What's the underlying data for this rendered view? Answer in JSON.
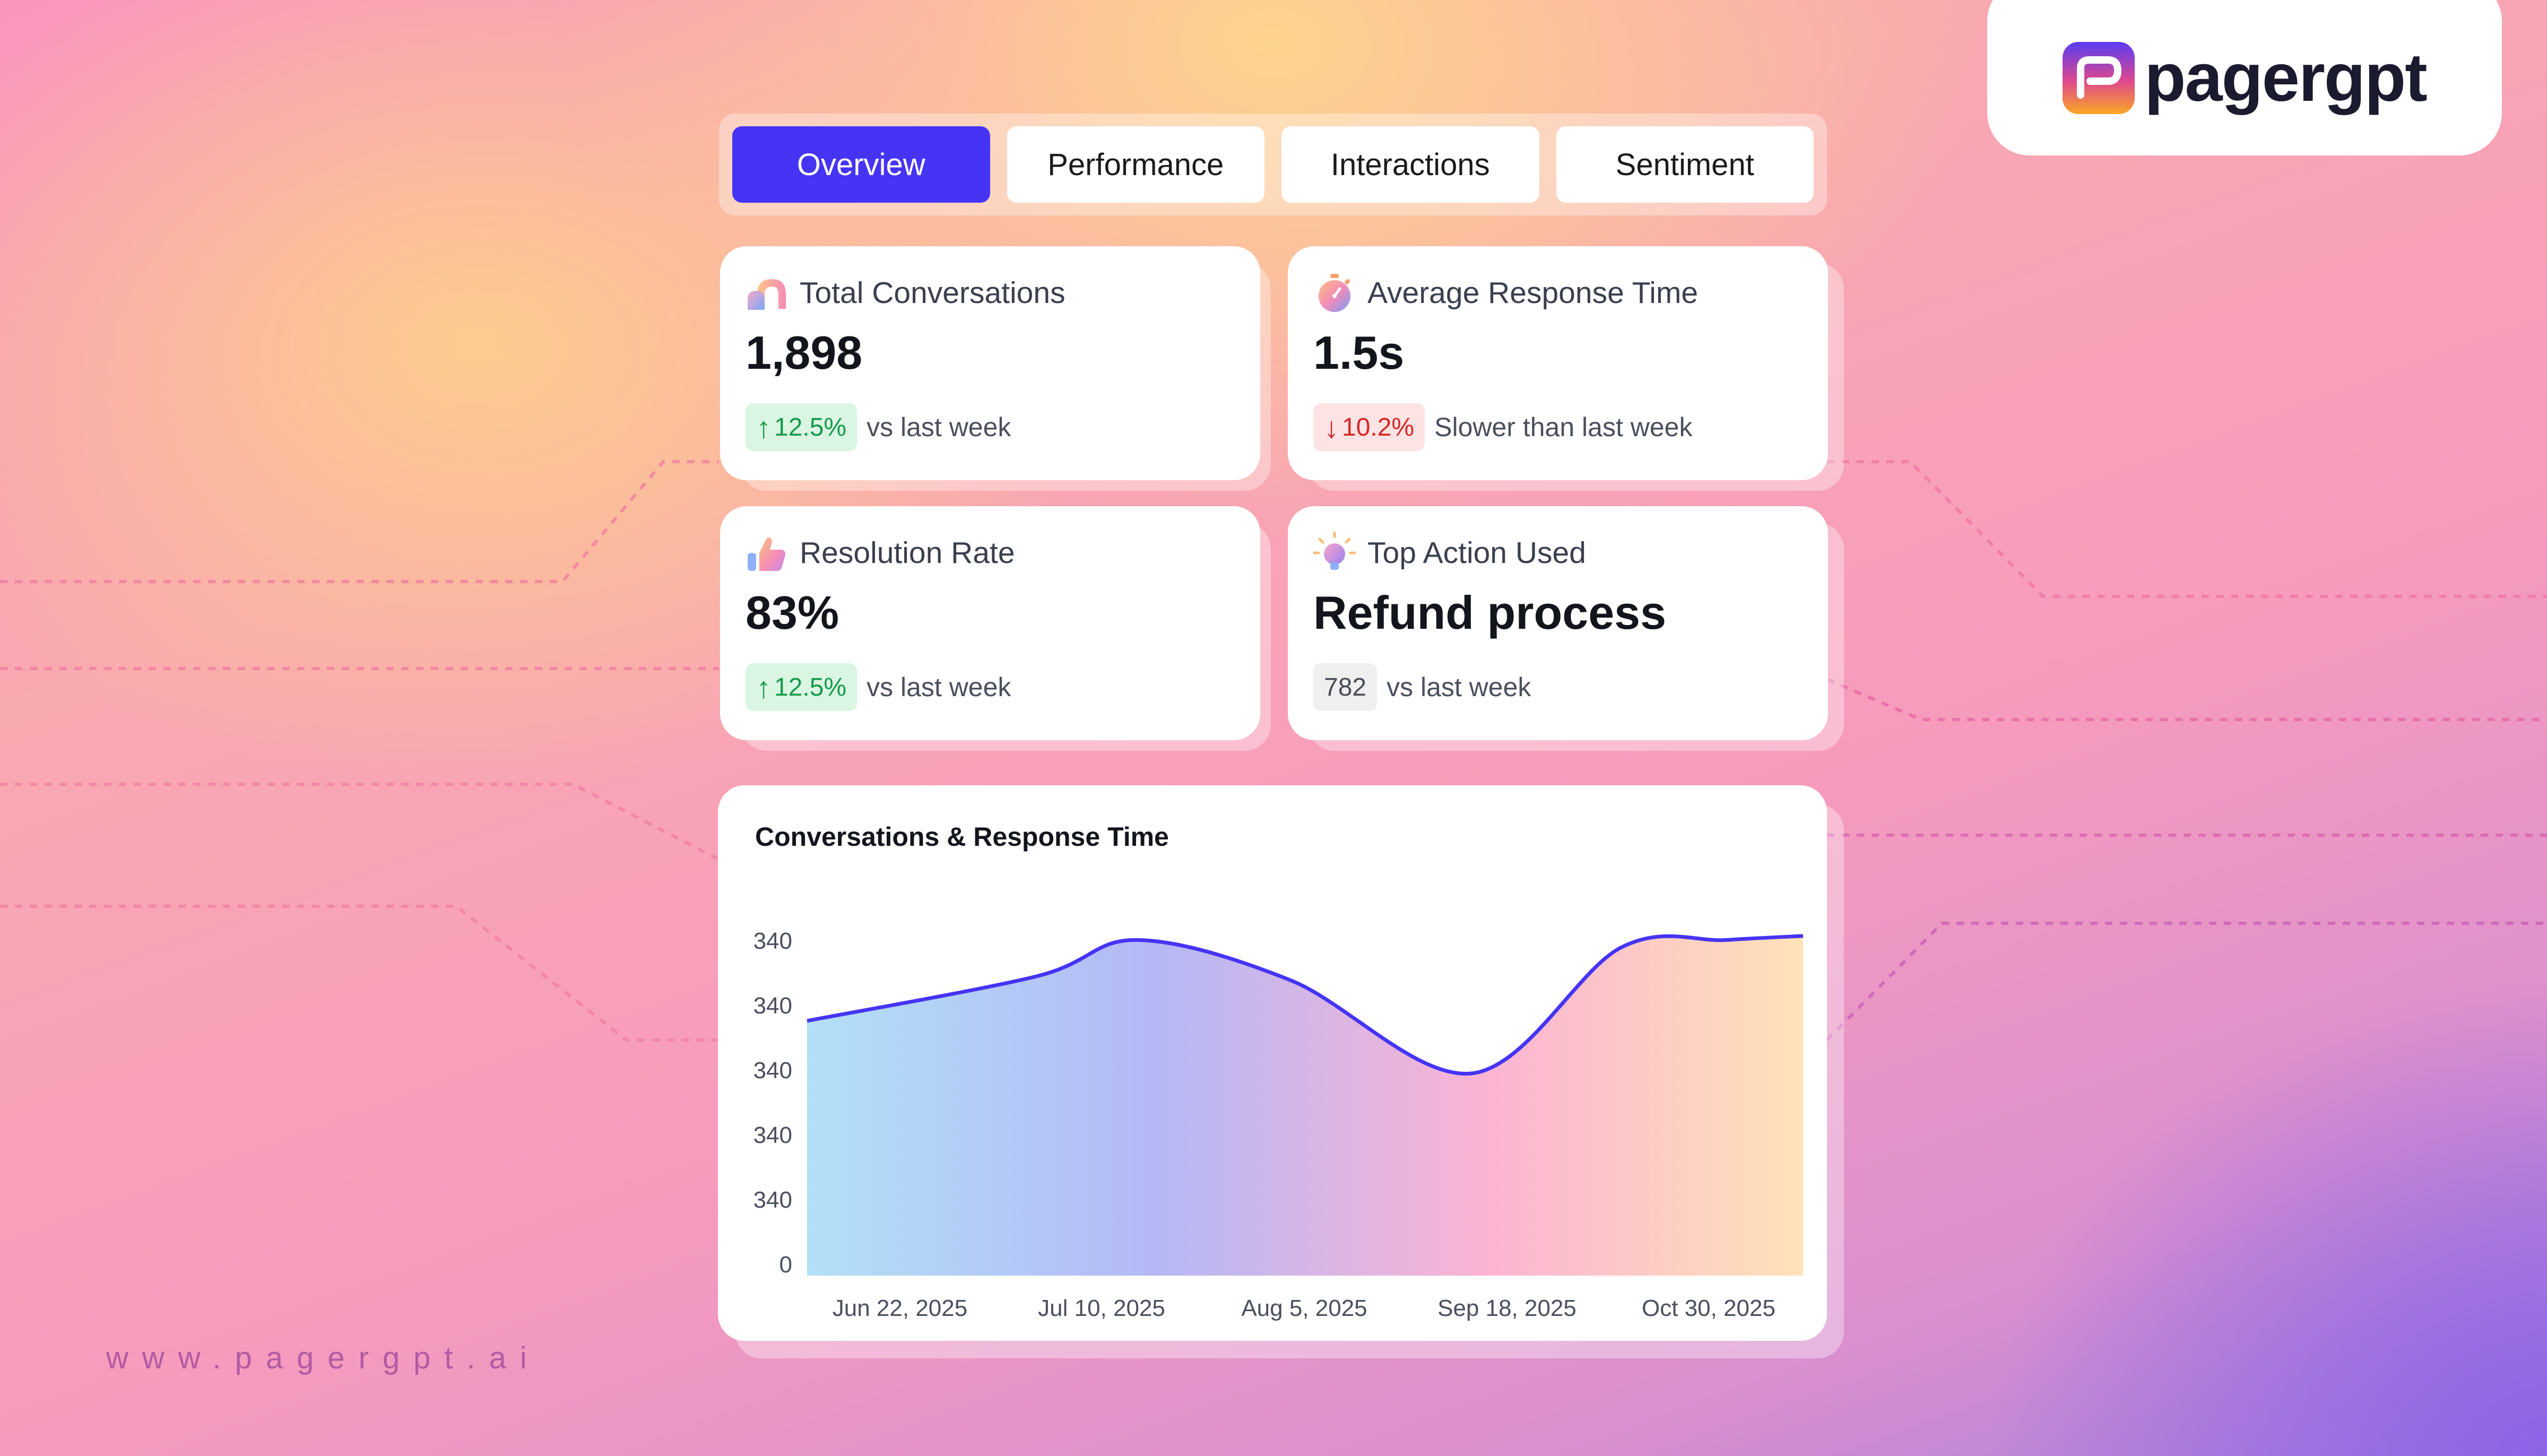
{
  "brand": {
    "name": "pagergpt",
    "website": "www.pagergpt.ai"
  },
  "tabs": [
    {
      "label": "Overview",
      "active": true
    },
    {
      "label": "Performance",
      "active": false
    },
    {
      "label": "Interactions",
      "active": false
    },
    {
      "label": "Sentiment",
      "active": false
    }
  ],
  "kpis": {
    "total_conversations": {
      "label": "Total Conversations",
      "value": "1,898",
      "change": "12.5%",
      "direction": "up",
      "note": "vs last week",
      "icon": "chat-bubbles-icon"
    },
    "avg_response_time": {
      "label": "Average Response Time",
      "value": "1.5s",
      "change": "10.2%",
      "direction": "down",
      "note": "Slower than last week",
      "icon": "stopwatch-icon"
    },
    "resolution_rate": {
      "label": "Resolution Rate",
      "value": "83%",
      "change": "12.5%",
      "direction": "up",
      "note": "vs last week",
      "icon": "thumbs-up-icon"
    },
    "top_action": {
      "label": "Top Action Used",
      "value": "Refund process",
      "count": "782",
      "note": "vs last week",
      "icon": "lightbulb-icon"
    }
  },
  "colors": {
    "accent": "#4634f4",
    "up": "#159a4a",
    "down": "#d62626"
  },
  "chart_data": {
    "type": "area",
    "title": "Conversations & Response Time",
    "y_tick_labels": [
      "340",
      "340",
      "340",
      "340",
      "340",
      "0"
    ],
    "x_tick_labels": [
      "Jun 22, 2025",
      "Jul 10, 2025",
      "Aug 5, 2025",
      "Sep 18, 2025",
      "Oct 30, 2025"
    ],
    "ylim_fraction": [
      0,
      1
    ],
    "series": [
      {
        "points_fraction": [
          0.63,
          0.74,
          0.83,
          0.73,
          0.5,
          0.81,
          0.83,
          0.84
        ]
      }
    ],
    "grid": false,
    "legend": "none"
  }
}
